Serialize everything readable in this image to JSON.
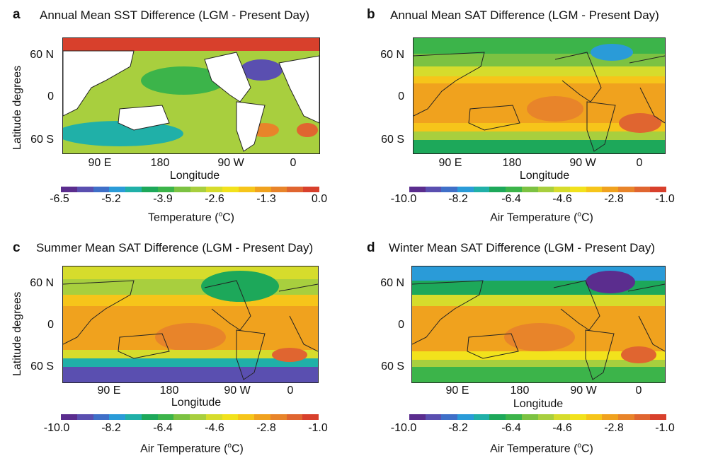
{
  "chart_data": [
    {
      "type": "heatmap",
      "panel_label": "a",
      "title": "Annual Mean SST Difference (LGM - Present Day)",
      "xlabel": "Longitude",
      "ylabel": "Latitude degrees",
      "x_ticks": [
        "90 E",
        "180",
        "90 W",
        "0"
      ],
      "y_ticks": [
        "60 N",
        "0",
        "60 S"
      ],
      "colorbar_ticks": [
        "-6.5",
        "-5.2",
        "-3.9",
        "-2.6",
        "-1.3",
        "0.0"
      ],
      "colorbar_label_prefix": "Temperature (",
      "colorbar_label_sup": "o",
      "colorbar_label_suffix": "C)",
      "value_range": [
        -6.5,
        0.0
      ],
      "land_masked": true
    },
    {
      "type": "heatmap",
      "panel_label": "b",
      "title": "Annual Mean SAT Difference (LGM - Present Day)",
      "xlabel": "Longitude",
      "x_ticks": [
        "90 E",
        "180",
        "90 W",
        "0"
      ],
      "y_ticks": [
        "60 N",
        "0",
        "60 S"
      ],
      "colorbar_ticks": [
        "-10.0",
        "-8.2",
        "-6.4",
        "-4.6",
        "-2.8",
        "-1.0"
      ],
      "colorbar_label_prefix": "Air Temperature (",
      "colorbar_label_sup": "o",
      "colorbar_label_suffix": "C)",
      "value_range": [
        -10.0,
        -1.0
      ]
    },
    {
      "type": "heatmap",
      "panel_label": "c",
      "title": "Summer Mean SAT Difference (LGM - Present Day)",
      "xlabel": "Longitude",
      "ylabel": "Latitude degrees",
      "x_ticks": [
        "90 E",
        "180",
        "90 W",
        "0"
      ],
      "y_ticks": [
        "60 N",
        "0",
        "60 S"
      ],
      "colorbar_ticks": [
        "-10.0",
        "-8.2",
        "-6.4",
        "-4.6",
        "-2.8",
        "-1.0"
      ],
      "colorbar_label_prefix": "Air Temperature (",
      "colorbar_label_sup": "o",
      "colorbar_label_suffix": "C)",
      "value_range": [
        -10.0,
        -1.0
      ]
    },
    {
      "type": "heatmap",
      "panel_label": "d",
      "title": "Winter Mean SAT Difference (LGM - Present Day)",
      "xlabel": "Longitude",
      "x_ticks": [
        "90 E",
        "180",
        "90 W",
        "0"
      ],
      "y_ticks": [
        "60 N",
        "0",
        "60 S"
      ],
      "colorbar_ticks": [
        "-10.0",
        "-8.2",
        "-6.4",
        "-4.6",
        "-2.8",
        "-1.0"
      ],
      "colorbar_label_prefix": "Air Temperature (",
      "colorbar_label_sup": "o",
      "colorbar_label_suffix": "C)",
      "value_range": [
        -10.0,
        -1.0
      ]
    }
  ],
  "colormap": [
    "#5b2d8e",
    "#5a4fb0",
    "#3f6fc8",
    "#2a9bd8",
    "#20b0a8",
    "#1da85a",
    "#3cb44a",
    "#7cc242",
    "#a8cf3e",
    "#d6dc2c",
    "#f2e21c",
    "#f6c51a",
    "#f0a21e",
    "#e8842a",
    "#e06530",
    "#d8402c"
  ]
}
